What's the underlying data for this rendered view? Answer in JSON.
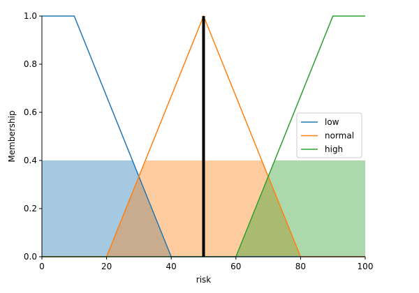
{
  "chart_data": {
    "type": "line",
    "xlabel": "risk",
    "ylabel": "Membership",
    "xlim": [
      0,
      100
    ],
    "ylim": [
      0,
      1.0
    ],
    "x_ticks": [
      "0",
      "20",
      "40",
      "60",
      "80",
      "100"
    ],
    "y_ticks": [
      "0.0",
      "0.2",
      "0.4",
      "0.6",
      "0.8",
      "1.0"
    ],
    "grid": false,
    "legend_position": "right",
    "series": [
      {
        "name": "low",
        "color": "#1f77b4",
        "x": [
          0,
          10,
          40,
          100
        ],
        "y": [
          1,
          1,
          0,
          0
        ]
      },
      {
        "name": "normal",
        "color": "#ff7f0e",
        "x": [
          0,
          20,
          50,
          80,
          100
        ],
        "y": [
          0,
          0,
          1,
          0,
          0
        ]
      },
      {
        "name": "high",
        "color": "#2ca02c",
        "x": [
          0,
          60,
          90,
          100
        ],
        "y": [
          0,
          0,
          1,
          1
        ]
      }
    ],
    "activation_level": 0.4,
    "crisp_output": 50
  }
}
